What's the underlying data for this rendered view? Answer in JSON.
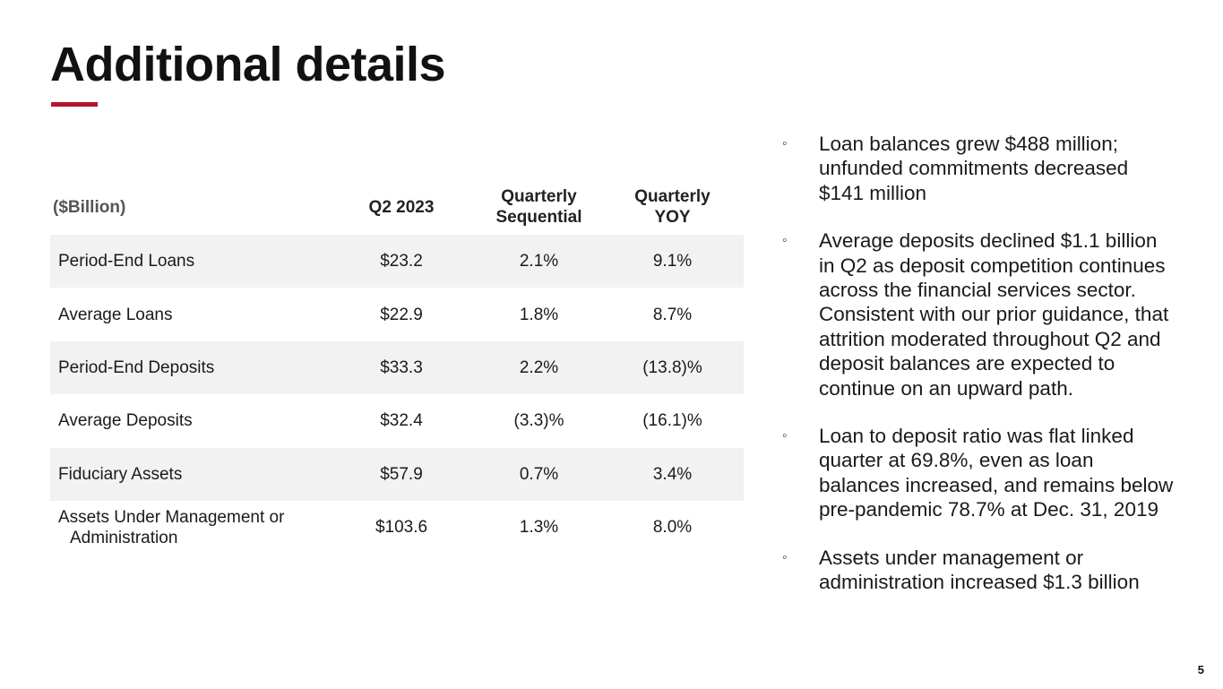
{
  "slide": {
    "title": "Additional details",
    "page_number": "5",
    "accent_color": "#b5122e"
  },
  "table": {
    "headers": {
      "units": "($Billion)",
      "q2": "Q2 2023",
      "seq_line1": "Quarterly",
      "seq_line2": "Sequential",
      "yoy_line1": "Quarterly",
      "yoy_line2": "YOY"
    },
    "rows": [
      {
        "label": "Period-End Loans",
        "q2": "$23.2",
        "seq": "2.1%",
        "yoy": "9.1%"
      },
      {
        "label": "Average Loans",
        "q2": "$22.9",
        "seq": "1.8%",
        "yoy": "8.7%"
      },
      {
        "label": "Period-End Deposits",
        "q2": "$33.3",
        "seq": "2.2%",
        "yoy": "(13.8)%"
      },
      {
        "label": "Average Deposits",
        "q2": "$32.4",
        "seq": "(3.3)%",
        "yoy": "(16.1)%"
      },
      {
        "label": "Fiduciary Assets",
        "q2": "$57.9",
        "seq": "0.7%",
        "yoy": "3.4%"
      },
      {
        "label_line1": "Assets Under Management or",
        "label_line2": "Administration",
        "q2": "$103.6",
        "seq": "1.3%",
        "yoy": "8.0%"
      }
    ]
  },
  "bullets": [
    {
      "mark": "◦",
      "text": "Loan balances grew $488 million; unfunded commitments decreased $141 million"
    },
    {
      "mark": "◦",
      "text": "Average deposits declined $1.1 billion in Q2 as deposit competition continues across the financial services sector. Consistent with our prior guidance, that attrition moderated throughout Q2 and deposit balances are expected to continue on an upward path."
    },
    {
      "mark": "◦",
      "text": "Loan to deposit ratio was flat linked quarter at 69.8%, even as loan balances increased, and remains below pre-pandemic 78.7% at Dec. 31, 2019"
    },
    {
      "mark": "◦",
      "text": "Assets under management or administration increased $1.3 billion"
    }
  ]
}
